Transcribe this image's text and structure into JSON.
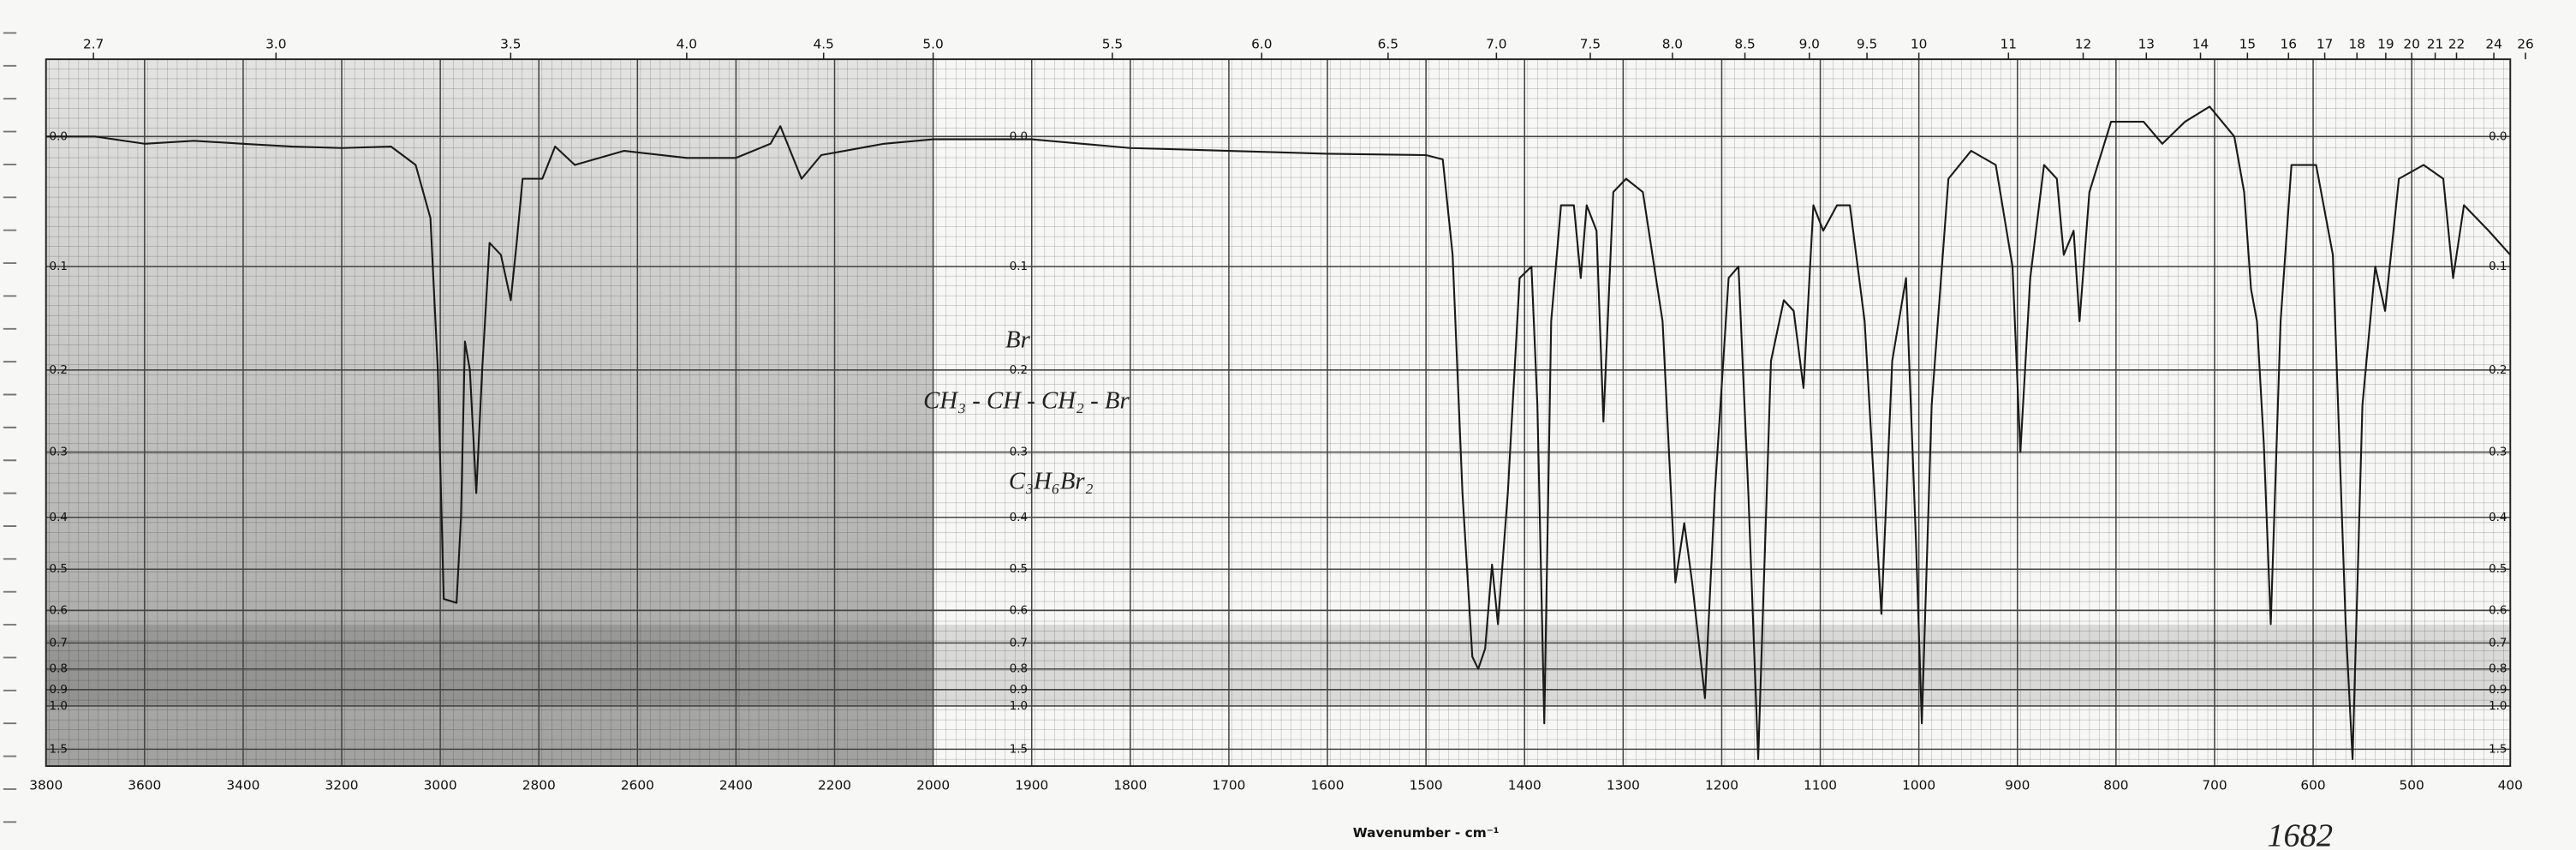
{
  "chart_data": {
    "type": "line",
    "x_label": "Wavenumber - cm⁻¹",
    "annotations": {
      "substituent": "Br",
      "structure": "CH₃ - CH - CH₂ - Br",
      "formula": "C₃H₆Br₂",
      "note": "1682"
    },
    "color": "#1a1a1a",
    "yscale": "transmittance",
    "grid": true,
    "xlim": [
      3800,
      400
    ],
    "xticks": [
      3800,
      3600,
      3400,
      3200,
      3000,
      2800,
      2600,
      2400,
      2200,
      2000,
      1900,
      1800,
      1700,
      1600,
      1500,
      1400,
      1300,
      1200,
      1100,
      1000,
      900,
      800,
      700,
      600,
      500,
      400
    ],
    "x2ticks": [
      2.7,
      {
        "value": 3,
        "label": "3.0"
      },
      3.5,
      {
        "value": 4,
        "label": "4.0"
      },
      4.5,
      {
        "value": 5,
        "label": "5.0"
      },
      5.5,
      {
        "value": 6,
        "label": "6.0"
      },
      6.5,
      {
        "value": 7,
        "label": "7.0"
      },
      7.5,
      {
        "value": 8,
        "label": "8.0"
      },
      8.5,
      {
        "value": 9,
        "label": "9.0"
      },
      9.5,
      10,
      11,
      12,
      13,
      14,
      15,
      16,
      17,
      18,
      19,
      20,
      21,
      22,
      24,
      26
    ],
    "ylim": [
      -0.05,
      2.3
    ],
    "yticks": [
      {
        "value": 0,
        "label": "0.0"
      },
      0.1,
      0.2,
      0.3,
      0.4,
      0.5,
      0.6,
      0.7,
      0.8,
      0.9,
      {
        "value": 1,
        "label": "1.0"
      },
      1.5
    ],
    "x": [
      3800,
      3700,
      3600,
      3500,
      3400,
      3300,
      3200,
      3100,
      3050,
      3020,
      3005,
      2993,
      2967,
      2958,
      2950,
      2940,
      2927,
      2915,
      2900,
      2877,
      2857,
      2845,
      2833,
      2793,
      2767,
      2727,
      2627,
      2500,
      2400,
      2330,
      2310,
      2267,
      2227,
      2100,
      2000,
      1900,
      1800,
      1700,
      1600,
      1500,
      1483,
      1473,
      1463,
      1453,
      1447,
      1440,
      1433,
      1427,
      1417,
      1405,
      1393,
      1387,
      1380,
      1373,
      1363,
      1350,
      1343,
      1337,
      1327,
      1320,
      1310,
      1297,
      1280,
      1260,
      1247,
      1238,
      1230,
      1217,
      1207,
      1193,
      1183,
      1173,
      1163,
      1150,
      1137,
      1127,
      1117,
      1107,
      1097,
      1083,
      1070,
      1055,
      1038,
      1027,
      1013,
      1003,
      997,
      987,
      970,
      947,
      922,
      905,
      897,
      887,
      873,
      860,
      853,
      843,
      837,
      827,
      805,
      772,
      753,
      730,
      705,
      680,
      670,
      663,
      657,
      650,
      643,
      633,
      622,
      597,
      580,
      567,
      560,
      550,
      537,
      527,
      513,
      488,
      468,
      458,
      447,
      422,
      400
    ],
    "values": [
      0.0,
      0.0,
      0.005,
      0.003,
      0.005,
      0.007,
      0.008,
      0.007,
      0.02,
      0.06,
      0.2,
      0.57,
      0.58,
      0.4,
      0.17,
      0.2,
      0.36,
      0.2,
      0.08,
      0.09,
      0.13,
      0.08,
      0.03,
      0.03,
      0.007,
      0.02,
      0.01,
      0.015,
      0.015,
      0.005,
      -0.007,
      0.03,
      0.013,
      0.005,
      0.002,
      0.002,
      0.008,
      0.01,
      0.012,
      0.013,
      0.016,
      0.09,
      0.36,
      0.75,
      0.8,
      0.72,
      0.49,
      0.64,
      0.36,
      0.11,
      0.1,
      0.24,
      1.14,
      0.15,
      0.05,
      0.05,
      0.11,
      0.05,
      0.07,
      0.26,
      0.04,
      0.03,
      0.04,
      0.15,
      0.53,
      0.41,
      0.53,
      0.95,
      0.36,
      0.11,
      0.1,
      0.36,
      1.8,
      0.19,
      0.13,
      0.14,
      0.22,
      0.05,
      0.07,
      0.05,
      0.05,
      0.15,
      0.61,
      0.19,
      0.11,
      0.44,
      1.14,
      0.24,
      0.03,
      0.01,
      0.02,
      0.1,
      0.3,
      0.11,
      0.02,
      0.03,
      0.09,
      0.07,
      0.15,
      0.04,
      -0.01,
      -0.01,
      0.005,
      -0.01,
      -0.02,
      0.0,
      0.04,
      0.12,
      0.15,
      0.29,
      0.64,
      0.15,
      0.02,
      0.02,
      0.09,
      0.64,
      1.8,
      0.24,
      0.1,
      0.14,
      0.03,
      0.02,
      0.03,
      0.11,
      0.05,
      0.07,
      0.09
    ]
  }
}
